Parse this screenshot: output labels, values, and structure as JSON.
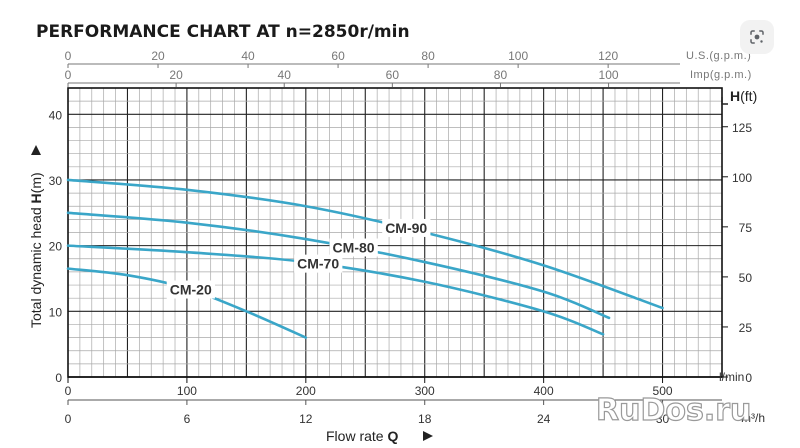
{
  "chart_data": {
    "type": "line",
    "title": "PERFORMANCE CHART AT n=2850r/min",
    "ylabel_parts": [
      "Total dynamic head ",
      "H",
      "(m)"
    ],
    "xlabel_parts": [
      "Flow rate ",
      "Q"
    ],
    "x_unit": "l/min",
    "x2_unit": "m³/h",
    "top_us_unit": "U.S.(g.p.m.)",
    "top_imp_unit": "Imp(g.p.m.)",
    "right_unit_parts": [
      "H",
      "(ft)"
    ],
    "x_ticks": [
      0,
      100,
      200,
      300,
      400,
      500
    ],
    "x2_ticks": [
      0,
      6,
      12,
      18,
      24,
      30
    ],
    "us_ticks": [
      0,
      20,
      40,
      60,
      80,
      100,
      120
    ],
    "imp_ticks": [
      0,
      20,
      40,
      60,
      80,
      100
    ],
    "y_ticks": [
      0,
      10,
      20,
      30,
      40
    ],
    "ft_ticks": [
      0,
      25,
      50,
      75,
      100,
      125
    ],
    "xlim": [
      0,
      550
    ],
    "ylim": [
      0,
      44
    ],
    "grid": true,
    "series": [
      {
        "name": "CM-90",
        "x": [
          0,
          100,
          200,
          300,
          400,
          500
        ],
        "y": [
          30,
          28.5,
          26,
          22,
          17,
          10.5
        ]
      },
      {
        "name": "CM-80",
        "x": [
          0,
          100,
          200,
          300,
          400,
          455
        ],
        "y": [
          25,
          23.5,
          21,
          17.5,
          13,
          9
        ]
      },
      {
        "name": "CM-70",
        "x": [
          0,
          100,
          200,
          300,
          400,
          450
        ],
        "y": [
          20,
          19,
          17.5,
          14.5,
          10,
          6.5
        ]
      },
      {
        "name": "CM-20",
        "x": [
          0,
          50,
          100,
          150,
          200
        ],
        "y": [
          16.5,
          15.5,
          13.5,
          10,
          6
        ]
      }
    ],
    "curve_color": "#3aa6c8"
  },
  "watermark": "RuDos.ru",
  "lens_icon": "google-lens-icon"
}
